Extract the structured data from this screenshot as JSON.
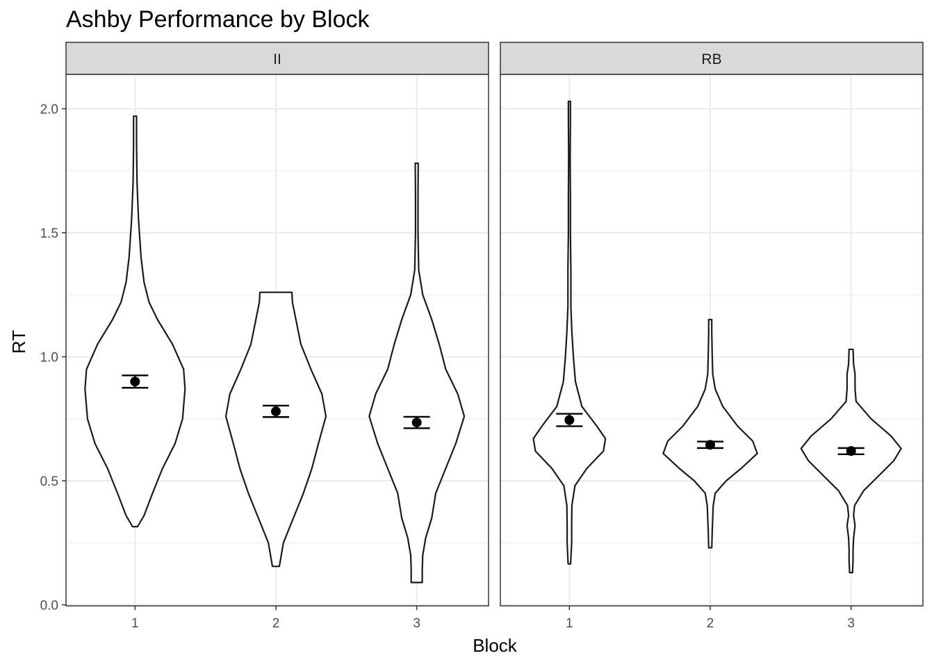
{
  "chart_data": {
    "type": "violin",
    "title": "Ashby Performance by Block",
    "xlabel": "Block",
    "ylabel": "RT",
    "ylim": [
      0,
      2.1
    ],
    "y_ticks": [
      "0.0",
      "0.5",
      "1.0",
      "1.5",
      "2.0"
    ],
    "x_categories": [
      "1",
      "2",
      "3"
    ],
    "grid": true,
    "colors": {
      "panel_strip": "#d9d9d9",
      "grid": "#ebebeb",
      "ink": "#1a1a1a"
    },
    "panels": [
      {
        "label": "II",
        "blocks": [
          {
            "block": "1",
            "mean": 0.9,
            "se_low": 0.875,
            "se_high": 0.925,
            "violin": [
              [
                0.315,
                0.05
              ],
              [
                0.36,
                0.18
              ],
              [
                0.45,
                0.35
              ],
              [
                0.55,
                0.55
              ],
              [
                0.65,
                0.8
              ],
              [
                0.75,
                0.95
              ],
              [
                0.87,
                1.0
              ],
              [
                0.95,
                0.97
              ],
              [
                1.05,
                0.75
              ],
              [
                1.15,
                0.45
              ],
              [
                1.22,
                0.28
              ],
              [
                1.3,
                0.18
              ],
              [
                1.4,
                0.12
              ],
              [
                1.55,
                0.07
              ],
              [
                1.7,
                0.04
              ],
              [
                1.85,
                0.03
              ],
              [
                1.97,
                0.03
              ]
            ]
          },
          {
            "block": "2",
            "mean": 0.78,
            "se_low": 0.757,
            "se_high": 0.803,
            "violin": [
              [
                0.155,
                0.07
              ],
              [
                0.25,
                0.15
              ],
              [
                0.35,
                0.35
              ],
              [
                0.45,
                0.55
              ],
              [
                0.55,
                0.72
              ],
              [
                0.65,
                0.85
              ],
              [
                0.76,
                1.0
              ],
              [
                0.85,
                0.92
              ],
              [
                0.95,
                0.7
              ],
              [
                1.05,
                0.5
              ],
              [
                1.15,
                0.4
              ],
              [
                1.22,
                0.33
              ],
              [
                1.26,
                0.32
              ]
            ]
          },
          {
            "block": "3",
            "mean": 0.735,
            "se_low": 0.712,
            "se_high": 0.758,
            "violin": [
              [
                0.09,
                0.11
              ],
              [
                0.14,
                0.11
              ],
              [
                0.2,
                0.12
              ],
              [
                0.27,
                0.18
              ],
              [
                0.35,
                0.3
              ],
              [
                0.45,
                0.38
              ],
              [
                0.55,
                0.58
              ],
              [
                0.65,
                0.78
              ],
              [
                0.76,
                0.95
              ],
              [
                0.85,
                0.82
              ],
              [
                0.95,
                0.58
              ],
              [
                1.05,
                0.45
              ],
              [
                1.15,
                0.3
              ],
              [
                1.25,
                0.12
              ],
              [
                1.35,
                0.04
              ],
              [
                1.5,
                0.025
              ],
              [
                1.65,
                0.025
              ],
              [
                1.78,
                0.03
              ]
            ]
          }
        ]
      },
      {
        "label": "RB",
        "blocks": [
          {
            "block": "1",
            "mean": 0.745,
            "se_low": 0.72,
            "se_high": 0.77,
            "violin": [
              [
                0.165,
                0.025
              ],
              [
                0.25,
                0.045
              ],
              [
                0.32,
                0.045
              ],
              [
                0.4,
                0.05
              ],
              [
                0.48,
                0.11
              ],
              [
                0.55,
                0.35
              ],
              [
                0.62,
                0.68
              ],
              [
                0.67,
                0.72
              ],
              [
                0.72,
                0.55
              ],
              [
                0.8,
                0.25
              ],
              [
                0.9,
                0.12
              ],
              [
                1.0,
                0.08
              ],
              [
                1.1,
                0.05
              ],
              [
                1.2,
                0.03
              ],
              [
                1.35,
                0.03
              ],
              [
                1.5,
                0.02
              ],
              [
                1.65,
                0.02
              ],
              [
                1.8,
                0.015
              ],
              [
                1.95,
                0.02
              ],
              [
                2.03,
                0.02
              ]
            ]
          },
          {
            "block": "2",
            "mean": 0.645,
            "se_low": 0.632,
            "se_high": 0.658,
            "violin": [
              [
                0.23,
                0.03
              ],
              [
                0.3,
                0.04
              ],
              [
                0.4,
                0.06
              ],
              [
                0.45,
                0.1
              ],
              [
                0.5,
                0.32
              ],
              [
                0.55,
                0.62
              ],
              [
                0.61,
                0.94
              ],
              [
                0.66,
                0.85
              ],
              [
                0.72,
                0.55
              ],
              [
                0.8,
                0.25
              ],
              [
                0.87,
                0.1
              ],
              [
                0.93,
                0.05
              ],
              [
                1.0,
                0.04
              ],
              [
                1.1,
                0.03
              ],
              [
                1.15,
                0.03
              ]
            ]
          },
          {
            "block": "3",
            "mean": 0.62,
            "se_low": 0.607,
            "se_high": 0.632,
            "violin": [
              [
                0.13,
                0.03
              ],
              [
                0.18,
                0.04
              ],
              [
                0.22,
                0.04
              ],
              [
                0.27,
                0.05
              ],
              [
                0.32,
                0.08
              ],
              [
                0.36,
                0.05
              ],
              [
                0.4,
                0.07
              ],
              [
                0.46,
                0.25
              ],
              [
                0.52,
                0.55
              ],
              [
                0.58,
                0.85
              ],
              [
                0.63,
                1.0
              ],
              [
                0.68,
                0.8
              ],
              [
                0.75,
                0.4
              ],
              [
                0.82,
                0.1
              ],
              [
                0.87,
                0.08
              ],
              [
                0.93,
                0.08
              ],
              [
                0.97,
                0.05
              ],
              [
                1.03,
                0.04
              ]
            ]
          }
        ]
      }
    ]
  }
}
